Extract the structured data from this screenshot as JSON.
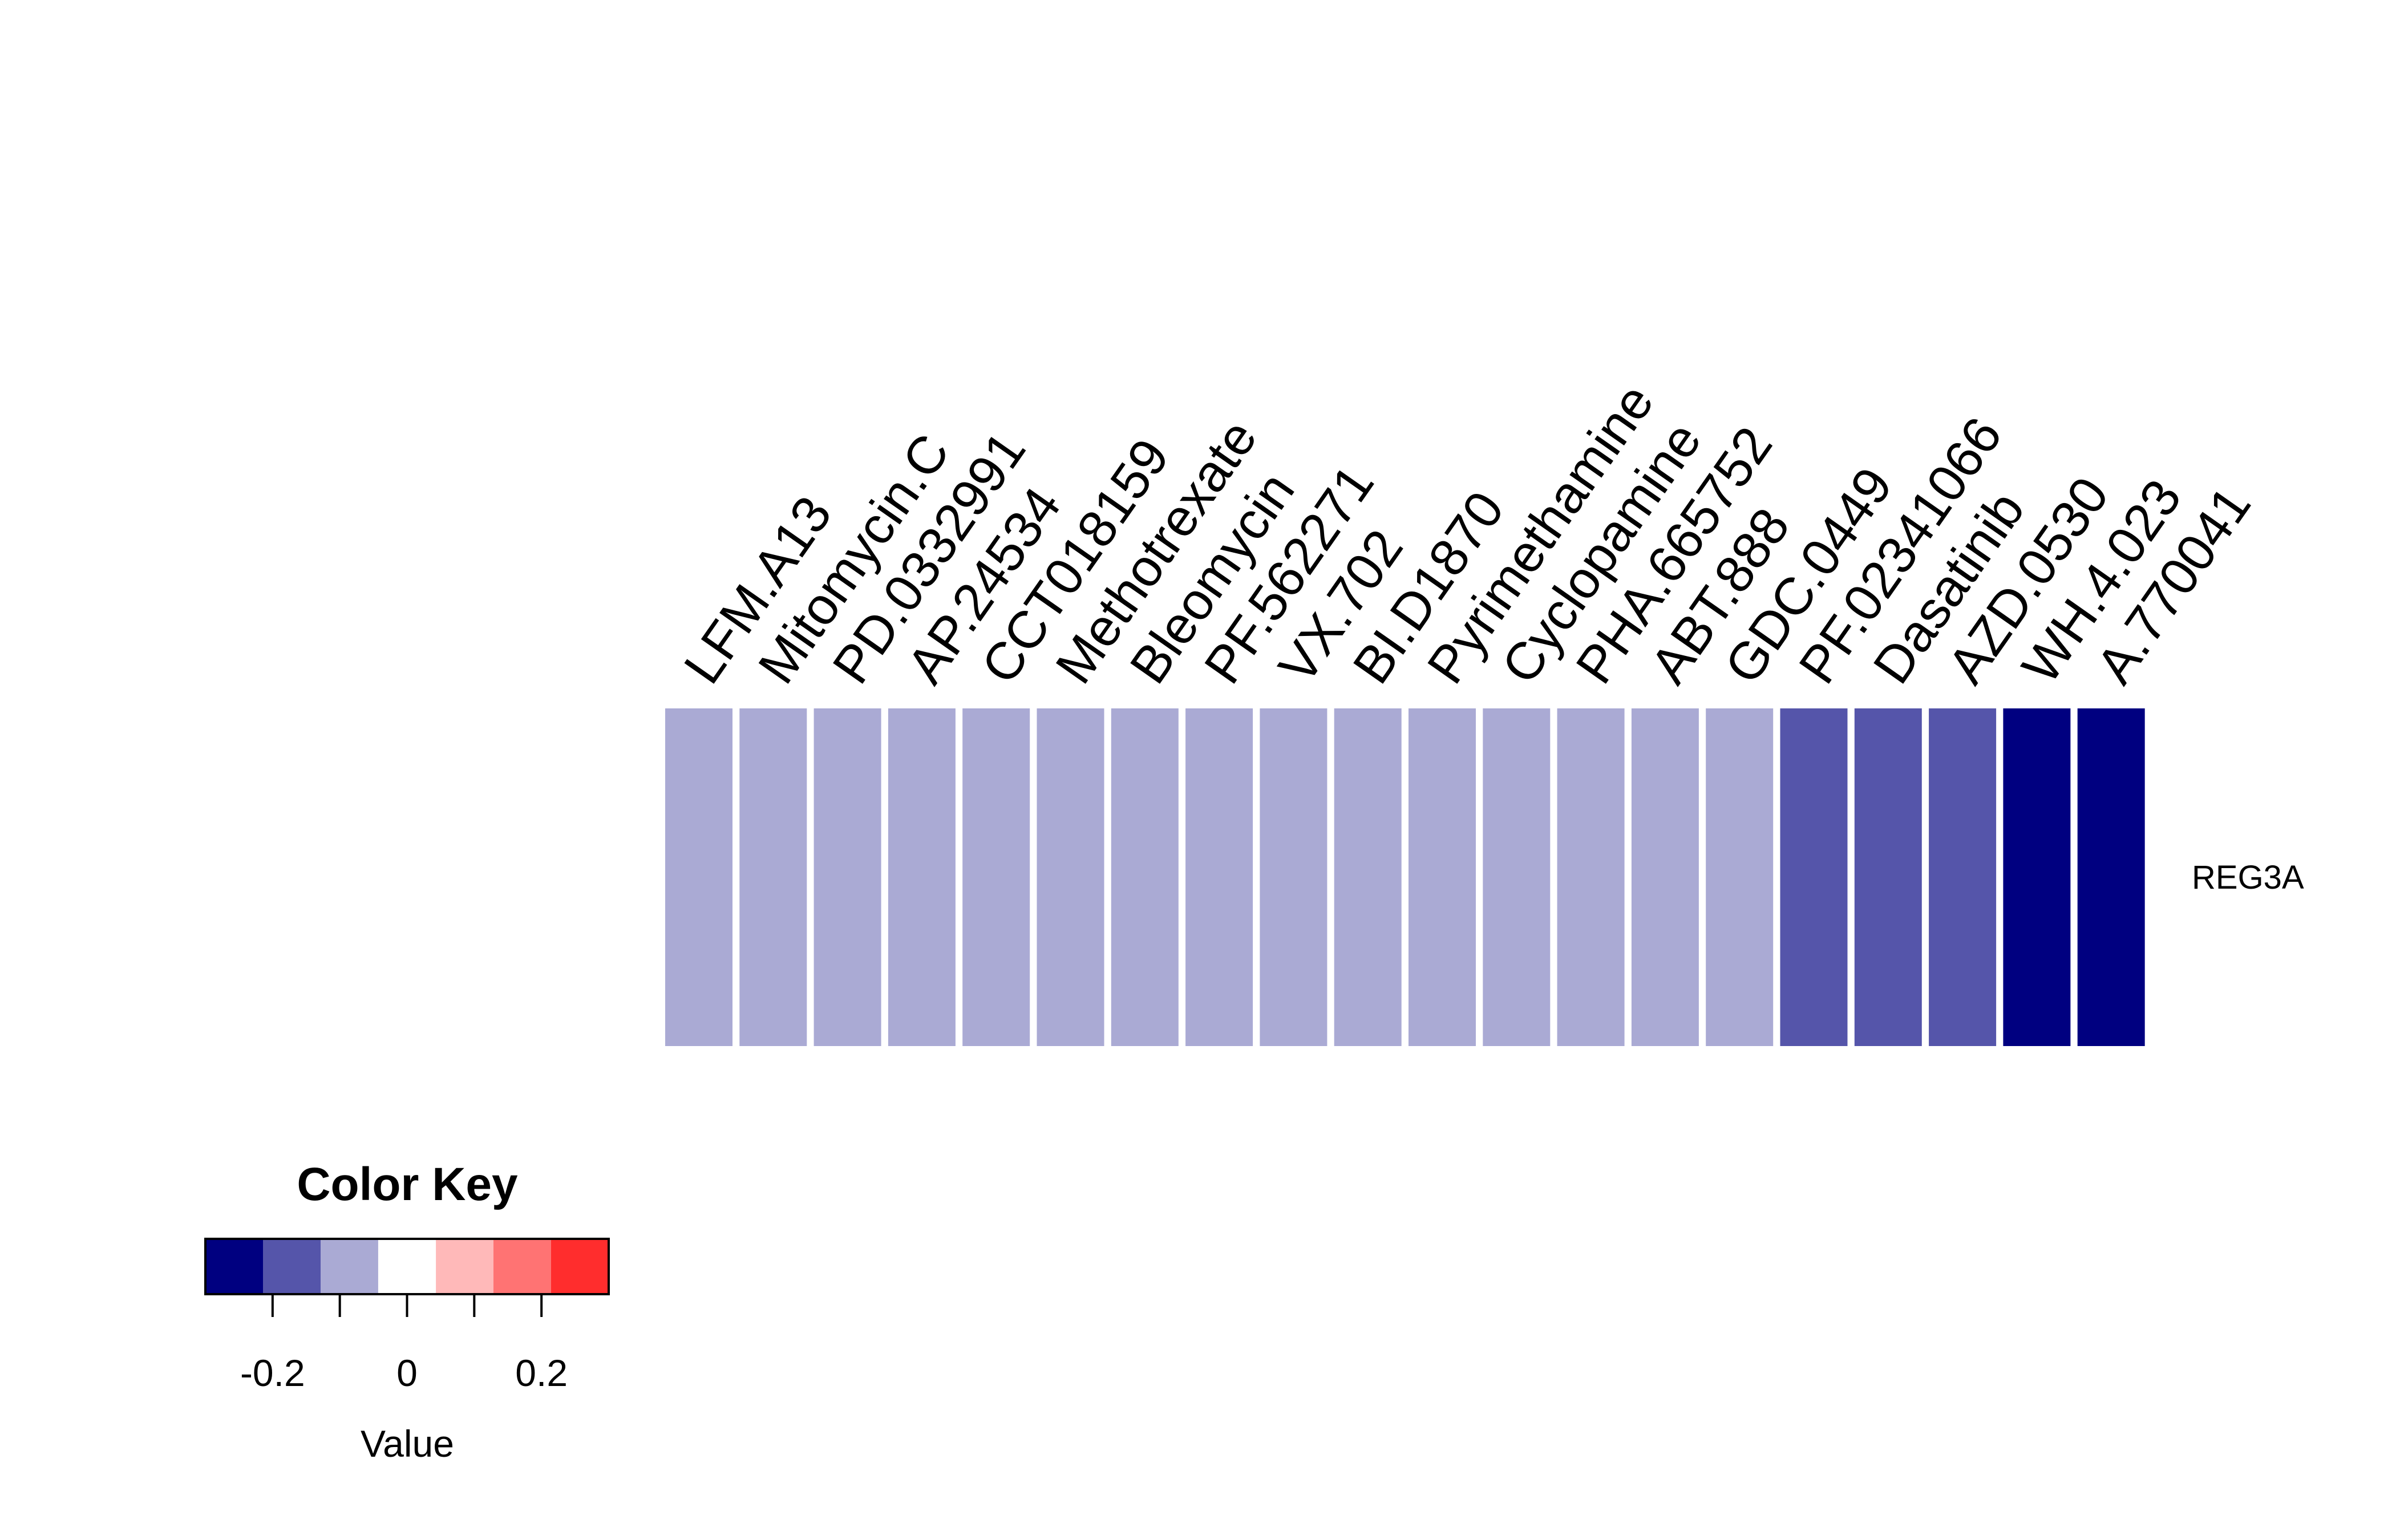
{
  "chart_data": {
    "type": "heatmap",
    "columns": [
      "LFM.A13",
      "Mitomycin.C",
      "PD.0332991",
      "AP.24534",
      "CCT018159",
      "Methotrexate",
      "Bleomycin",
      "PF.562271",
      "VX.702",
      "BI.D1870",
      "Pyrimethamine",
      "Cyclopamine",
      "PHA.665752",
      "ABT.888",
      "GDC.0449",
      "PF.02341066",
      "Dasatinib",
      "AZD.0530",
      "WH.4.023",
      "A.770041"
    ],
    "rows": [
      "REG3A"
    ],
    "values": [
      [
        -0.1,
        -0.1,
        -0.1,
        -0.1,
        -0.1,
        -0.1,
        -0.1,
        -0.1,
        -0.1,
        -0.1,
        -0.1,
        -0.1,
        -0.1,
        -0.1,
        -0.1,
        -0.2,
        -0.2,
        -0.2,
        -0.3,
        -0.3
      ]
    ],
    "color_key": {
      "title": "Color Key",
      "xlabel": "Value",
      "range": [
        -0.3,
        0.3
      ],
      "breaks": [
        -0.3,
        -0.2143,
        -0.1286,
        -0.0429,
        0.0429,
        0.1286,
        0.2143,
        0.3
      ],
      "colors": [
        "#000080",
        "#5555AA",
        "#AAAAD4",
        "#FFFFFF",
        "#FFB9B9",
        "#FF7373",
        "#FF2D2D"
      ],
      "ticks": [
        -0.2,
        -0.1,
        0,
        0.1,
        0.2
      ],
      "tick_labels": [
        "-0.2",
        "",
        "0",
        "",
        "0.2"
      ]
    }
  }
}
